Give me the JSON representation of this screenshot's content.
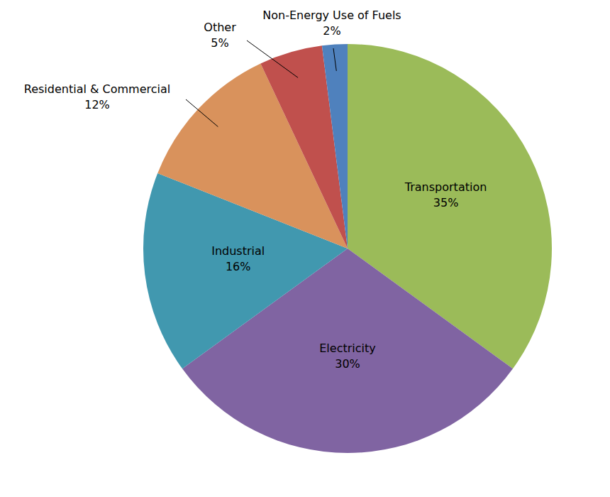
{
  "chart_data": {
    "type": "pie",
    "categories": [
      "Transportation",
      "Electricity",
      "Industrial",
      "Residential & Commercial",
      "Other",
      "Non-Energy Use of Fuels"
    ],
    "values": [
      35,
      30,
      16,
      12,
      5,
      2
    ],
    "value_labels": [
      "35%",
      "30%",
      "16%",
      "12%",
      "5%",
      "2%"
    ],
    "colors": [
      "#9bbb59",
      "#8064a2",
      "#4198af",
      "#d9925c",
      "#c0504d",
      "#4f81bd"
    ],
    "data_labels": true
  }
}
